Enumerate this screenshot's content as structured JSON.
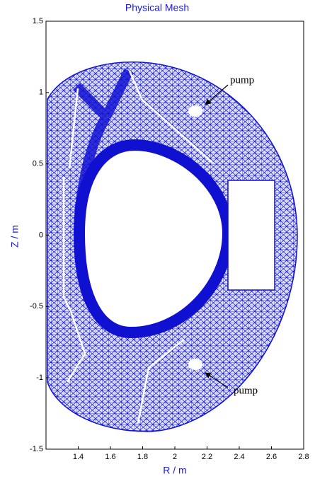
{
  "chart_data": {
    "type": "mesh",
    "title": "Physical Mesh",
    "xlabel": "R / m",
    "ylabel": "Z / m",
    "xlim": [
      1.2,
      2.8
    ],
    "ylim": [
      -1.5,
      1.5
    ],
    "xticks": [
      1.4,
      1.6,
      1.8,
      2,
      2.2,
      2.4,
      2.6,
      2.8
    ],
    "yticks": [
      -1.5,
      -1,
      -0.5,
      0,
      0.5,
      1,
      1.5
    ],
    "annotations": [
      "pump",
      "pump"
    ],
    "color": "#1010d0"
  }
}
